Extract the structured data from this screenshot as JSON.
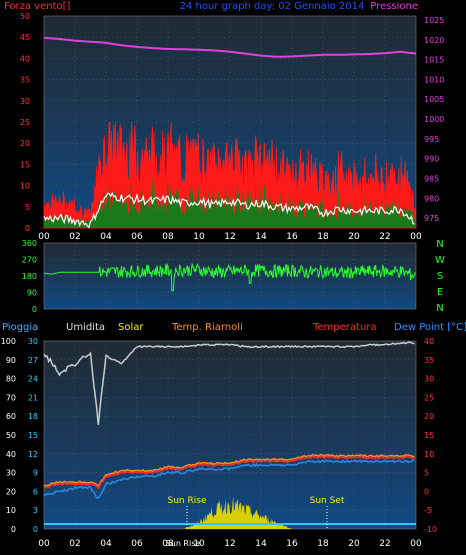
{
  "header": {
    "left_label": "Forza vento[]",
    "center_title": "24 hour graph day: 02 Gennaio 2014",
    "right_label": "Pressione"
  },
  "wind_panel": {
    "y_ticks": [
      "0",
      "5",
      "10",
      "15",
      "20",
      "25",
      "30",
      "35",
      "40",
      "45",
      "50"
    ],
    "pressure_ticks": [
      "975",
      "980",
      "985",
      "990",
      "995",
      "1000",
      "1005",
      "1010",
      "1015",
      "1020",
      "1025"
    ],
    "y_range": [
      0,
      50
    ],
    "pressure_range": [
      972.5,
      1026
    ],
    "colors": {
      "pressure": "#e040e0",
      "gust": "#ff1a1a",
      "speed": "#1a7a1a",
      "average": "#ffffff"
    }
  },
  "direction_panel": {
    "y_ticks": [
      "0",
      "90",
      "180",
      "270",
      "360"
    ],
    "compass": [
      "N",
      "W",
      "S",
      "E",
      "N"
    ],
    "y_range": [
      0,
      360
    ],
    "color": "#2aff2a"
  },
  "lower_header": {
    "rain": "Pioggia",
    "humidity": "Umidita",
    "solar": "Solar",
    "temp_room": "Temp. Riarnoli",
    "temperature": "Temperatura",
    "dewpoint": "Dew Point [°C]"
  },
  "lower_panel": {
    "left_ticks": [
      "0",
      "10",
      "20",
      "30",
      "40",
      "50",
      "60",
      "70",
      "80",
      "90",
      "100"
    ],
    "mid_ticks": [
      "0",
      "3",
      "6",
      "9",
      "12",
      "15",
      "18",
      "21",
      "24",
      "27",
      "30"
    ],
    "right_ticks": [
      "-10",
      "-5",
      "0",
      "5",
      "10",
      "15",
      "20",
      "25",
      "30",
      "35",
      "40"
    ],
    "temp_range": [
      -10,
      40
    ],
    "sun_rise_label": "Sun Rise",
    "sun_set_label": "Sun Set",
    "overlap_label": "Sun Rise"
  },
  "x_ticks": [
    "00",
    "02",
    "04",
    "06",
    "08",
    "10",
    "12",
    "14",
    "16",
    "18",
    "20",
    "22",
    "00"
  ],
  "chart_data": {
    "type": "line",
    "x_hours": [
      0,
      1,
      2,
      3,
      3.5,
      4,
      5,
      6,
      7,
      8,
      9,
      10,
      11,
      12,
      13,
      14,
      15,
      16,
      17,
      18,
      19,
      20,
      21,
      22,
      23,
      24
    ],
    "series": [
      {
        "name": "Pressione",
        "values": [
          1020.5,
          1020.2,
          1019.8,
          1019.5,
          1019.4,
          1019.2,
          1018.6,
          1018.2,
          1017.9,
          1017.7,
          1017.6,
          1017.5,
          1017.3,
          1017.0,
          1016.5,
          1016.0,
          1015.7,
          1015.8,
          1016.0,
          1016.2,
          1016.2,
          1016.3,
          1016.4,
          1016.6,
          1017.0,
          1016.5
        ]
      },
      {
        "name": "Forza vento",
        "values": [
          5,
          5,
          4,
          2,
          10,
          17,
          16,
          15,
          14,
          15,
          13,
          14,
          12,
          14,
          12,
          13,
          11,
          10,
          11,
          8,
          10,
          9,
          9,
          9,
          10,
          3
        ]
      },
      {
        "name": "Umidita",
        "values": [
          94,
          82,
          88,
          93,
          56,
          92,
          88,
          97,
          97,
          97,
          97,
          98,
          98,
          98,
          97,
          97,
          97,
          97,
          97,
          97,
          97,
          97,
          98,
          98,
          99,
          99
        ]
      },
      {
        "name": "Temperatura",
        "values": [
          1,
          2,
          2,
          2,
          1,
          4,
          5,
          5,
          5,
          6,
          6,
          7,
          7,
          7,
          8,
          8,
          8,
          8,
          9,
          9,
          9,
          9,
          9,
          9,
          9,
          9
        ]
      },
      {
        "name": "Dew Point [°C]",
        "values": [
          -1,
          0,
          1,
          1,
          -2,
          2,
          3,
          4,
          4,
          5,
          5,
          6,
          6,
          6,
          7,
          7,
          7,
          7,
          8,
          8,
          8,
          8,
          8,
          8,
          8,
          8
        ]
      },
      {
        "name": "Solar",
        "values": [
          0,
          0,
          0,
          0,
          0,
          0,
          0,
          0,
          0,
          0,
          0,
          1,
          3,
          4,
          3,
          2,
          1,
          0,
          0,
          0,
          0,
          0,
          0,
          0,
          0,
          0
        ]
      }
    ],
    "direction_series": {
      "x_hours": [
        0,
        0.5,
        1,
        3.5,
        5,
        8,
        10,
        11,
        12,
        13,
        14,
        15,
        16,
        17,
        18,
        19,
        20,
        21,
        22,
        23,
        24
      ],
      "values": [
        195,
        190,
        200,
        200,
        205,
        210,
        215,
        200,
        205,
        210,
        210,
        205,
        210,
        200,
        205,
        195,
        200,
        205,
        205,
        205,
        180
      ]
    },
    "xlim": [
      0,
      24
    ],
    "grid": true
  }
}
